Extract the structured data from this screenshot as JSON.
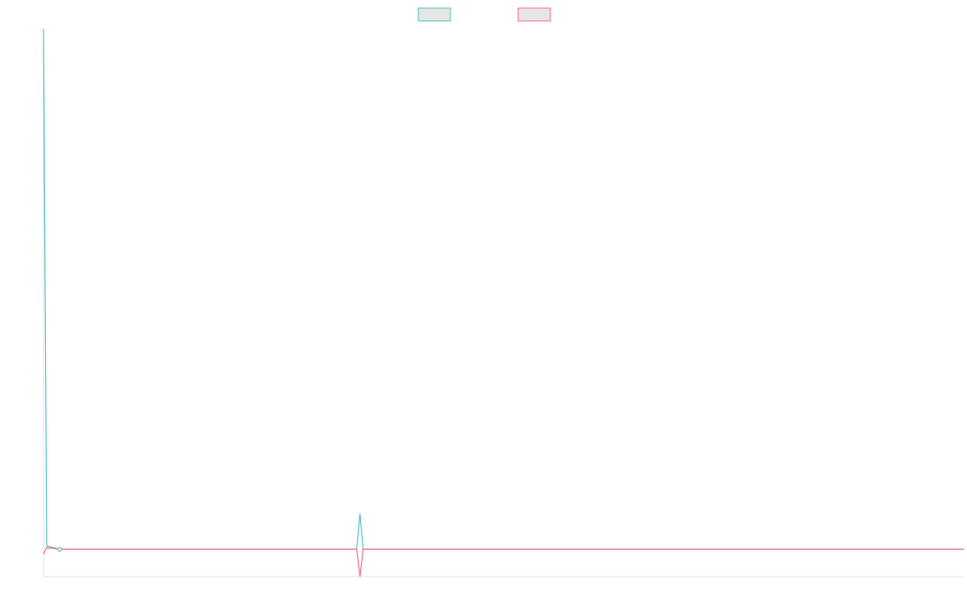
{
  "chart_data": {
    "type": "line",
    "x": [
      0,
      1,
      5,
      97,
      98,
      99,
      285
    ],
    "series": [
      {
        "color": "#4bc0c0",
        "values": [
          100,
          5.6,
          5,
          5,
          11.5,
          5,
          5
        ]
      },
      {
        "color": "#ff6384",
        "values": [
          4.1,
          5.3,
          5,
          5,
          0,
          5,
          5
        ]
      }
    ],
    "xlim": [
      0,
      285
    ],
    "ylim": [
      0,
      100
    ],
    "grid": false,
    "legend": "top",
    "marker_index": 2
  }
}
